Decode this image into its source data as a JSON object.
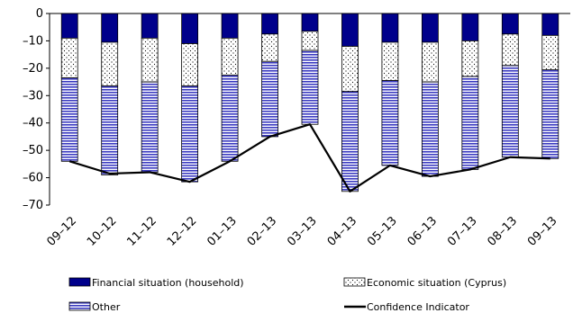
{
  "chart_data": {
    "type": "bar",
    "stacked": true,
    "title": "",
    "xlabel": "",
    "ylabel": "",
    "ylim": [
      -70,
      0
    ],
    "yticks": [
      0,
      -10,
      -20,
      -30,
      -40,
      -50,
      -60,
      -70
    ],
    "grid": false,
    "legend_position": "bottom",
    "categories": [
      "09-12",
      "10-12",
      "11-12",
      "12-12",
      "01-13",
      "02-13",
      "03-13",
      "04-13",
      "05-13",
      "06-13",
      "07-13",
      "08-13",
      "09-13"
    ],
    "series": [
      {
        "name": "Financial situation (household)",
        "type": "bar",
        "color": "#00008b",
        "pattern": "solid",
        "values": [
          -9,
          -10.5,
          -9,
          -11,
          -9,
          -7.5,
          -6.5,
          -12,
          -10.5,
          -10.5,
          -10,
          -7.5,
          -8
        ]
      },
      {
        "name": "Economic situation (Cyprus)",
        "type": "bar",
        "color": "#000000",
        "pattern": "dots",
        "values": [
          -14.5,
          -16,
          -16,
          -15.5,
          -13.5,
          -10,
          -7,
          -16.5,
          -14,
          -14.5,
          -13,
          -11.5,
          -12.5
        ]
      },
      {
        "name": "Other",
        "type": "bar",
        "color": "#3a3ac0",
        "pattern": "horizontal-stripes",
        "values": [
          -30.5,
          -32.5,
          -33,
          -35,
          -31.5,
          -27.5,
          -27,
          -36.5,
          -31,
          -34.5,
          -34,
          -33.5,
          -32.5
        ]
      },
      {
        "name": "Confidence Indicator",
        "type": "line",
        "color": "#000000",
        "values": [
          -54,
          -58.5,
          -58,
          -61.5,
          -54,
          -45,
          -40.5,
          -65,
          -55.5,
          -59.5,
          -57,
          -52.5,
          -53
        ]
      }
    ]
  }
}
